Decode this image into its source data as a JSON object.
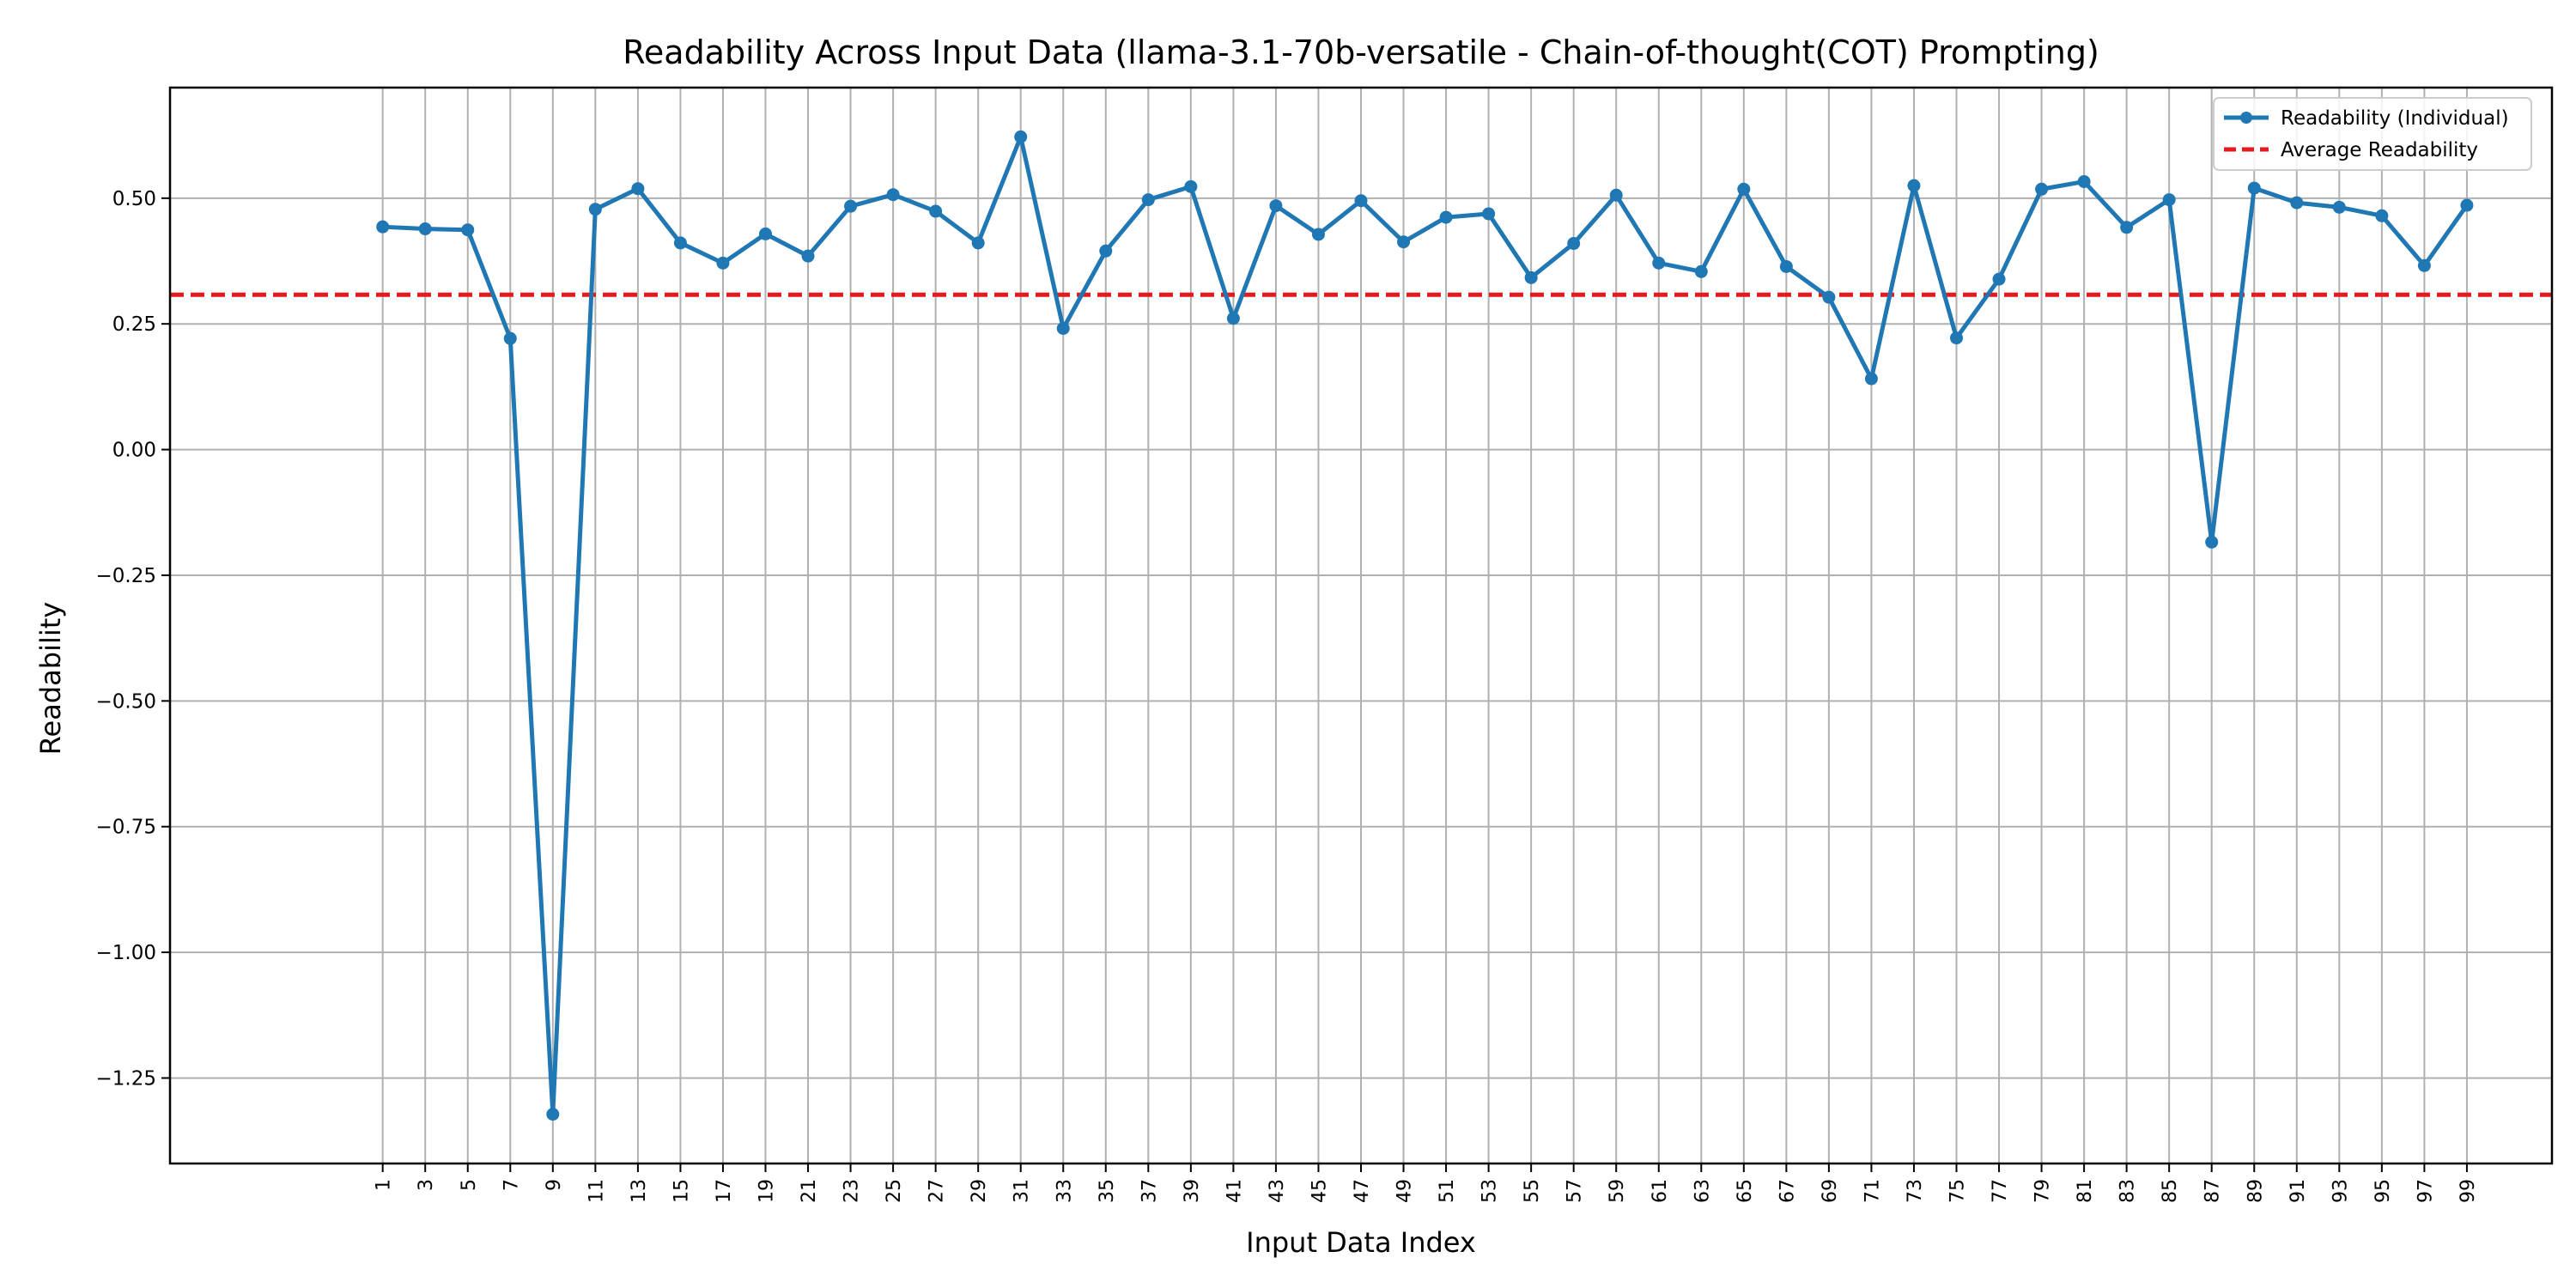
{
  "chart_data": {
    "type": "line",
    "title": "Readability Across Input Data (llama-3.1-70b-versatile - Chain-of-thought(COT) Prompting)",
    "xlabel": "Input Data Index",
    "ylabel": "Readability",
    "x": [
      1,
      3,
      5,
      7,
      9,
      11,
      13,
      15,
      17,
      19,
      21,
      23,
      25,
      27,
      29,
      31,
      33,
      35,
      37,
      39,
      41,
      43,
      45,
      47,
      49,
      51,
      53,
      55,
      57,
      59,
      61,
      63,
      65,
      67,
      69,
      71,
      73,
      75,
      77,
      79,
      81,
      83,
      85,
      87,
      89,
      91,
      93,
      95,
      97,
      99
    ],
    "x_tick_labels": [
      "1",
      "3",
      "5",
      "7",
      "9",
      "11",
      "13",
      "15",
      "17",
      "19",
      "21",
      "23",
      "25",
      "27",
      "29",
      "31",
      "33",
      "35",
      "37",
      "39",
      "41",
      "43",
      "45",
      "47",
      "49",
      "51",
      "53",
      "55",
      "57",
      "59",
      "61",
      "63",
      "65",
      "67",
      "69",
      "71",
      "73",
      "75",
      "77",
      "79",
      "81",
      "83",
      "85",
      "87",
      "89",
      "91",
      "93",
      "95",
      "97",
      "99"
    ],
    "xlim": [
      -9,
      103
    ],
    "ylim": [
      -1.42,
      0.72
    ],
    "y_ticks": [
      0.5,
      0.25,
      0.0,
      -0.25,
      -0.5,
      -0.75,
      -1.0,
      -1.25
    ],
    "y_tick_labels": [
      "0.50",
      "0.25",
      "0.00",
      "−0.25",
      "−0.50",
      "−0.75",
      "−1.00",
      "−1.25"
    ],
    "grid": true,
    "legend_position": "top-right",
    "series": [
      {
        "name": "Readability (Individual)",
        "color": "#1f77b4",
        "style": "solid-with-markers",
        "values": [
          0.443,
          0.439,
          0.437,
          0.221,
          -1.322,
          0.478,
          0.519,
          0.411,
          0.371,
          0.429,
          0.385,
          0.484,
          0.507,
          0.474,
          0.411,
          0.622,
          0.241,
          0.395,
          0.497,
          0.523,
          0.261,
          0.485,
          0.428,
          0.495,
          0.413,
          0.462,
          0.469,
          0.342,
          0.41,
          0.506,
          0.371,
          0.354,
          0.518,
          0.364,
          0.303,
          0.141,
          0.525,
          0.222,
          0.339,
          0.518,
          0.533,
          0.442,
          0.497,
          -0.184,
          0.52,
          0.491,
          0.482,
          0.465,
          0.366,
          0.486
        ]
      },
      {
        "name": "Average Readability",
        "color": "#e41a1c",
        "style": "dashed",
        "value": 0.308
      }
    ]
  }
}
